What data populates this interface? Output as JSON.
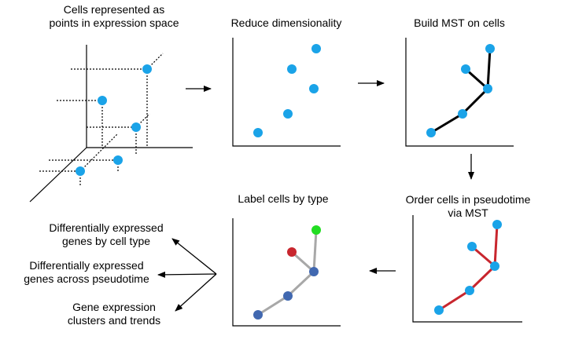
{
  "panels": {
    "cells_space": {
      "title": "Cells represented as\npoints in expression space"
    },
    "reduce": {
      "title": "Reduce dimensionality"
    },
    "mst": {
      "title": "Build MST on cells"
    },
    "pseudotime": {
      "title": "Order cells in pseudotime\nvia MST"
    },
    "label_type": {
      "title": "Label cells by type"
    }
  },
  "outputs": [
    {
      "text": "Differentially expressed\ngenes by cell type"
    },
    {
      "text": "Differentially expressed\ngenes across pseudotime"
    },
    {
      "text": "Gene expression\nclusters and trends"
    }
  ],
  "colors": {
    "cell": "#1aa3e8",
    "mst_edge": "#000000",
    "pseudotime_edge": "#c8262e",
    "type_edge": "#a8a8a8",
    "type_blue": "#4168b0",
    "type_red": "#c8262e",
    "type_green": "#22dd22"
  }
}
